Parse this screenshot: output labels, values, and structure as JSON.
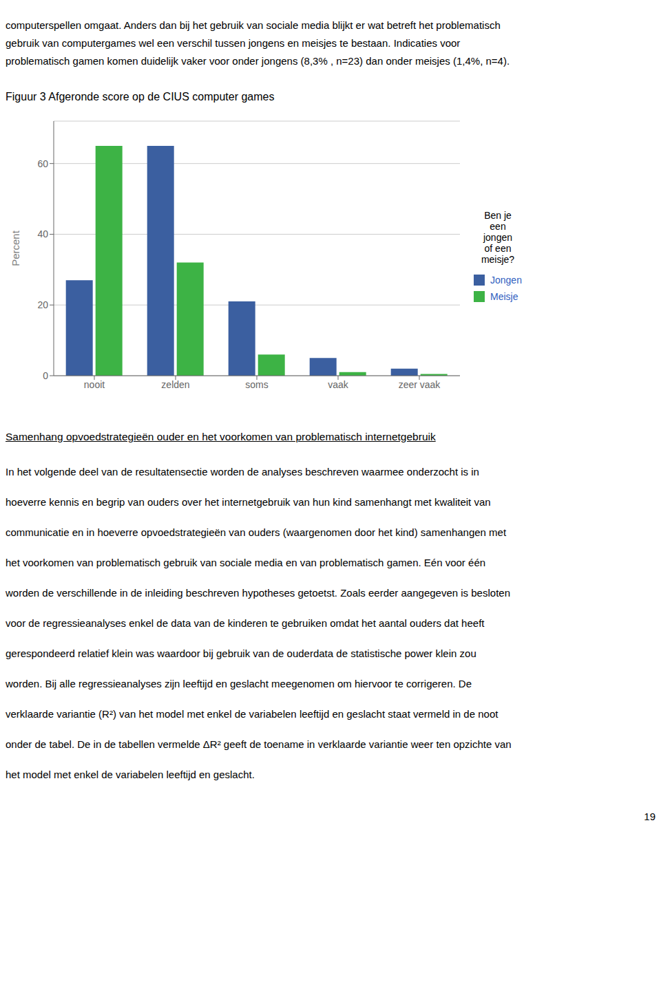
{
  "intro_text_lines": [
    "computerspellen omgaat. Anders dan bij het gebruik van sociale media blijkt er wat betreft het problematisch",
    "gebruik van computergames wel een verschil tussen jongens en meisjes te bestaan. Indicaties voor",
    "problematisch gamen komen duidelijk vaker voor onder jongens (8,3% , n=23) dan onder meisjes (1,4%, n=4)."
  ],
  "chart_data": {
    "type": "bar",
    "title": "Figuur 3 Afgeronde score op de CIUS computer games",
    "categories": [
      "nooit",
      "zelden",
      "soms",
      "vaak",
      "zeer vaak"
    ],
    "series": [
      {
        "name": "Jongen",
        "color": "#3b5fa0",
        "values": [
          27,
          65,
          21,
          5,
          2
        ]
      },
      {
        "name": "Meisje",
        "color": "#3db345",
        "values": [
          65,
          32,
          6,
          1,
          0.5
        ]
      }
    ],
    "ylabel": "Percent",
    "ylim": [
      0,
      72
    ],
    "yticks": [
      0,
      20,
      40,
      60
    ],
    "grid": true,
    "legend": "right",
    "legend_title": "Ben je\neen\njongen\nof een\nmeisje?"
  },
  "section_heading": "Samenhang opvoedstrategieën ouder en het voorkomen van problematisch internetgebruik",
  "body_paragraphs": [
    "In het volgende deel van de resultatensectie worden de analyses beschreven waarmee onderzocht is in",
    "hoeverre kennis en begrip van ouders over het internetgebruik van hun kind samenhangt met kwaliteit van",
    "communicatie en in hoeverre opvoedstrategieën van ouders (waargenomen door het kind) samenhangen met",
    "het voorkomen van problematisch gebruik van sociale media en van problematisch gamen. Eén voor één",
    "worden de verschillende in de inleiding beschreven hypotheses getoetst. Zoals eerder aangegeven is besloten",
    "voor de regressieanalyses enkel de data van de kinderen te gebruiken omdat het aantal ouders dat heeft",
    "gerespondeerd relatief klein was waardoor bij gebruik van de ouderdata de statistische power klein zou",
    "worden. Bij alle regressieanalyses zijn leeftijd en geslacht meegenomen om hiervoor te corrigeren. De",
    "verklaarde variantie (R²) van het model met enkel de variabelen leeftijd en geslacht staat vermeld in de noot",
    "onder de tabel. De in de tabellen vermelde ΔR² geeft de toename in verklaarde variantie weer ten opzichte van",
    "het model met enkel de variabelen leeftijd en geslacht."
  ],
  "page_number": "19"
}
